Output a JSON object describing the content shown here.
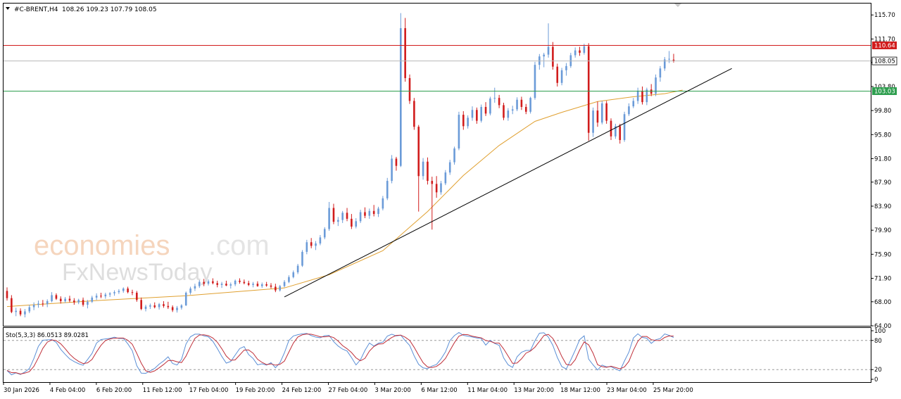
{
  "header": {
    "symbol": "#C-BRENT,H4",
    "ohlc": "108.26 109.23 107.79 108.05"
  },
  "watermark": {
    "brand_a": "economies",
    "brand_b": ".com",
    "brand_c": "FxNewsToday"
  },
  "colors": {
    "bull": "#6b9bd8",
    "bear": "#d11c1c",
    "ma": "#e0a030",
    "resistance": "#d11c1c",
    "support": "#2e9e4f",
    "price_line": "#b8b8b8",
    "trendline": "#000000",
    "stoch_main": "#5b8fd6",
    "stoch_signal": "#c0303a"
  },
  "chart_data": {
    "type": "candlestick",
    "instrument": "#C-BRENT",
    "timeframe": "H4",
    "ylim": [
      64.0,
      117.6
    ],
    "y_ticks": [
      "115.70",
      "111.70",
      "107.80",
      "103.80",
      "99.80",
      "95.80",
      "91.80",
      "87.90",
      "83.90",
      "79.90",
      "75.90",
      "71.90",
      "68.00",
      "64.00"
    ],
    "x_ticks": [
      "30 Jan 2026",
      "4 Feb 04:00",
      "6 Feb 20:00",
      "11 Feb 12:00",
      "17 Feb 04:00",
      "19 Feb 20:00",
      "24 Feb 12:00",
      "27 Feb 04:00",
      "3 Mar 20:00",
      "6 Mar 12:00",
      "11 Mar 04:00",
      "13 Mar 20:00",
      "18 Mar 12:00",
      "23 Mar 04:00",
      "25 Mar 20:00"
    ],
    "candles": [
      [
        69.8,
        70.4,
        68.2,
        68.6
      ],
      [
        68.6,
        69.1,
        66.1,
        66.3
      ],
      [
        66.3,
        67.0,
        65.6,
        66.5
      ],
      [
        66.5,
        66.9,
        65.6,
        65.9
      ],
      [
        65.9,
        66.8,
        65.4,
        66.4
      ],
      [
        66.4,
        67.5,
        66.1,
        67.1
      ],
      [
        67.1,
        67.9,
        66.6,
        67.5
      ],
      [
        67.5,
        68.2,
        67.0,
        67.7
      ],
      [
        67.7,
        68.3,
        67.2,
        67.6
      ],
      [
        67.6,
        68.4,
        67.1,
        68.1
      ],
      [
        68.1,
        69.6,
        67.9,
        69.1
      ],
      [
        69.1,
        69.4,
        68.3,
        68.5
      ],
      [
        68.5,
        68.9,
        67.7,
        68.1
      ],
      [
        68.1,
        68.8,
        67.8,
        68.5
      ],
      [
        68.5,
        69.0,
        67.9,
        68.2
      ],
      [
        68.2,
        68.6,
        67.5,
        67.9
      ],
      [
        67.9,
        68.5,
        67.6,
        68.3
      ],
      [
        68.3,
        68.7,
        67.2,
        67.5
      ],
      [
        67.5,
        68.3,
        66.9,
        68.0
      ],
      [
        68.0,
        69.0,
        67.8,
        68.7
      ],
      [
        68.7,
        69.4,
        68.3,
        69.0
      ],
      [
        69.0,
        69.5,
        68.6,
        68.9
      ],
      [
        68.9,
        69.5,
        68.5,
        69.2
      ],
      [
        69.2,
        69.6,
        68.8,
        69.4
      ],
      [
        69.4,
        69.9,
        69.0,
        69.6
      ],
      [
        69.6,
        70.1,
        69.3,
        69.8
      ],
      [
        69.8,
        70.4,
        69.5,
        70.2
      ],
      [
        70.2,
        70.5,
        69.4,
        69.6
      ],
      [
        69.6,
        70.0,
        69.1,
        69.5
      ],
      [
        69.5,
        69.8,
        68.0,
        68.3
      ],
      [
        68.3,
        68.7,
        66.6,
        66.8
      ],
      [
        66.8,
        67.5,
        66.4,
        67.2
      ],
      [
        67.2,
        67.7,
        66.8,
        67.4
      ],
      [
        67.4,
        67.9,
        66.9,
        67.1
      ],
      [
        67.1,
        67.8,
        66.7,
        67.6
      ],
      [
        67.6,
        68.1,
        67.0,
        67.3
      ],
      [
        67.3,
        68.0,
        66.8,
        67.1
      ],
      [
        67.1,
        67.4,
        66.3,
        66.6
      ],
      [
        66.6,
        67.3,
        66.2,
        67.0
      ],
      [
        67.0,
        67.6,
        66.7,
        67.4
      ],
      [
        67.4,
        69.7,
        67.3,
        69.5
      ],
      [
        69.5,
        70.5,
        69.2,
        70.2
      ],
      [
        70.2,
        71.0,
        69.8,
        70.6
      ],
      [
        70.6,
        71.6,
        70.3,
        71.3
      ],
      [
        71.3,
        71.8,
        70.6,
        71.0
      ],
      [
        71.0,
        71.7,
        70.7,
        71.4
      ],
      [
        71.4,
        71.9,
        70.9,
        71.1
      ],
      [
        71.1,
        71.5,
        70.4,
        70.8
      ],
      [
        70.8,
        71.3,
        70.3,
        71.0
      ],
      [
        71.0,
        71.5,
        70.6,
        70.7
      ],
      [
        70.7,
        71.2,
        70.2,
        70.9
      ],
      [
        70.9,
        71.7,
        70.6,
        71.5
      ],
      [
        71.5,
        71.9,
        71.0,
        71.3
      ],
      [
        71.3,
        71.7,
        70.9,
        71.1
      ],
      [
        71.1,
        71.5,
        70.6,
        70.8
      ],
      [
        70.8,
        71.3,
        70.4,
        71.0
      ],
      [
        71.0,
        71.4,
        70.5,
        70.6
      ],
      [
        70.6,
        71.2,
        70.3,
        70.9
      ],
      [
        70.9,
        71.3,
        70.5,
        70.7
      ],
      [
        70.7,
        71.1,
        70.2,
        70.5
      ],
      [
        70.5,
        71.0,
        69.6,
        69.9
      ],
      [
        69.9,
        70.8,
        69.7,
        70.6
      ],
      [
        70.6,
        71.6,
        70.4,
        71.3
      ],
      [
        71.3,
        72.4,
        71.1,
        72.1
      ],
      [
        72.1,
        73.2,
        71.9,
        72.9
      ],
      [
        72.9,
        74.3,
        72.6,
        74.0
      ],
      [
        74.0,
        76.6,
        73.8,
        76.3
      ],
      [
        76.3,
        78.3,
        75.9,
        77.9
      ],
      [
        77.9,
        78.6,
        76.9,
        77.3
      ],
      [
        77.3,
        78.1,
        76.6,
        77.7
      ],
      [
        77.7,
        79.1,
        77.4,
        78.7
      ],
      [
        78.7,
        80.4,
        78.4,
        80.1
      ],
      [
        80.1,
        84.6,
        79.8,
        83.6
      ],
      [
        83.6,
        84.3,
        80.9,
        81.3
      ],
      [
        81.3,
        82.1,
        80.6,
        81.6
      ],
      [
        81.6,
        83.1,
        81.1,
        82.8
      ],
      [
        82.8,
        83.6,
        81.4,
        81.8
      ],
      [
        81.8,
        82.6,
        80.1,
        80.5
      ],
      [
        80.5,
        81.9,
        80.2,
        81.4
      ],
      [
        81.4,
        83.3,
        81.1,
        82.9
      ],
      [
        82.9,
        83.7,
        81.9,
        82.3
      ],
      [
        82.3,
        83.5,
        81.8,
        83.1
      ],
      [
        83.1,
        84.1,
        82.2,
        82.6
      ],
      [
        82.6,
        83.8,
        82.1,
        83.5
      ],
      [
        83.5,
        85.6,
        83.2,
        85.2
      ],
      [
        85.2,
        88.6,
        84.9,
        88.1
      ],
      [
        88.1,
        92.4,
        87.7,
        91.8
      ],
      [
        91.8,
        92.1,
        89.8,
        90.6
      ],
      [
        90.6,
        116.0,
        90.4,
        113.5
      ],
      [
        113.5,
        115.2,
        104.6,
        105.2
      ],
      [
        105.2,
        105.8,
        100.9,
        101.4
      ],
      [
        101.4,
        101.9,
        96.6,
        97.1
      ],
      [
        97.1,
        97.4,
        83.0,
        88.9
      ],
      [
        88.9,
        91.9,
        88.3,
        91.3
      ],
      [
        91.3,
        92.0,
        87.5,
        88.1
      ],
      [
        88.1,
        88.8,
        80.0,
        87.6
      ],
      [
        87.6,
        88.9,
        85.3,
        86.2
      ],
      [
        86.2,
        88.1,
        85.8,
        87.7
      ],
      [
        87.7,
        89.9,
        87.4,
        89.5
      ],
      [
        89.5,
        91.6,
        89.1,
        91.2
      ],
      [
        91.2,
        93.8,
        90.8,
        93.5
      ],
      [
        93.5,
        99.6,
        93.2,
        99.1
      ],
      [
        99.1,
        99.7,
        96.6,
        97.2
      ],
      [
        97.2,
        99.0,
        96.8,
        98.6
      ],
      [
        98.6,
        100.5,
        98.1,
        99.9
      ],
      [
        99.9,
        100.3,
        97.6,
        98.1
      ],
      [
        98.1,
        100.8,
        97.8,
        100.4
      ],
      [
        100.4,
        101.2,
        98.9,
        99.3
      ],
      [
        99.3,
        102.1,
        99.0,
        101.8
      ],
      [
        101.8,
        103.6,
        101.1,
        101.9
      ],
      [
        101.9,
        102.4,
        100.2,
        100.7
      ],
      [
        100.7,
        101.1,
        98.2,
        98.6
      ],
      [
        98.6,
        100.2,
        98.1,
        99.8
      ],
      [
        99.8,
        100.6,
        99.2,
        100.0
      ],
      [
        100.0,
        102.0,
        99.7,
        101.6
      ],
      [
        101.6,
        102.1,
        99.9,
        100.4
      ],
      [
        100.4,
        100.9,
        99.2,
        99.6
      ],
      [
        99.6,
        102.1,
        99.3,
        101.9
      ],
      [
        101.9,
        107.9,
        101.6,
        107.4
      ],
      [
        107.4,
        109.2,
        106.6,
        108.8
      ],
      [
        108.8,
        109.4,
        107.0,
        109.1
      ],
      [
        109.1,
        114.3,
        108.6,
        110.4
      ],
      [
        110.4,
        111.2,
        106.6,
        107.1
      ],
      [
        107.1,
        107.6,
        103.8,
        104.4
      ],
      [
        104.4,
        106.9,
        104.0,
        106.5
      ],
      [
        106.5,
        107.7,
        105.6,
        107.2
      ],
      [
        107.2,
        109.4,
        106.9,
        109.0
      ],
      [
        109.0,
        110.3,
        108.6,
        109.8
      ],
      [
        109.8,
        110.4,
        108.9,
        109.4
      ],
      [
        109.4,
        110.9,
        109.1,
        110.5
      ],
      [
        110.5,
        111.0,
        94.8,
        96.1
      ],
      [
        96.1,
        100.3,
        95.4,
        99.8
      ],
      [
        99.8,
        101.3,
        97.1,
        97.8
      ],
      [
        97.8,
        101.4,
        97.5,
        101.0
      ],
      [
        101.0,
        101.4,
        97.6,
        98.1
      ],
      [
        98.1,
        98.5,
        94.9,
        95.5
      ],
      [
        95.5,
        97.6,
        95.1,
        97.2
      ],
      [
        97.2,
        97.6,
        94.3,
        94.9
      ],
      [
        94.9,
        99.6,
        94.6,
        99.2
      ],
      [
        99.2,
        101.0,
        98.9,
        100.5
      ],
      [
        100.5,
        101.9,
        100.2,
        101.4
      ],
      [
        101.4,
        103.6,
        100.9,
        103.1
      ],
      [
        103.1,
        103.8,
        100.8,
        101.2
      ],
      [
        101.2,
        103.6,
        100.7,
        103.3
      ],
      [
        103.3,
        104.2,
        102.2,
        102.6
      ],
      [
        102.6,
        105.8,
        102.2,
        105.3
      ],
      [
        105.3,
        107.2,
        104.6,
        106.8
      ],
      [
        106.8,
        108.7,
        106.4,
        108.3
      ],
      [
        108.3,
        109.7,
        107.7,
        108.4
      ],
      [
        108.26,
        109.23,
        107.79,
        108.05
      ]
    ],
    "moving_average": [
      [
        0,
        67.2
      ],
      [
        20,
        68.2
      ],
      [
        40,
        69.0
      ],
      [
        62,
        70.3
      ],
      [
        72,
        72.5
      ],
      [
        84,
        76.5
      ],
      [
        94,
        83.0
      ],
      [
        102,
        89.0
      ],
      [
        110,
        94.0
      ],
      [
        118,
        98.0
      ],
      [
        124,
        99.5
      ],
      [
        132,
        101.3
      ],
      [
        140,
        102.1
      ],
      [
        147,
        102.6
      ],
      [
        151,
        103.2
      ]
    ],
    "trendline": [
      [
        62,
        68.8
      ],
      [
        162,
        106.8
      ]
    ],
    "horizontal_levels": {
      "resistance": {
        "value": 110.64,
        "label": "110.64"
      },
      "last_price": {
        "value": 108.05,
        "label": "108.05"
      },
      "support": {
        "value": 103.03,
        "label": "103.03"
      }
    },
    "stochastic": {
      "label": "Sto(5,3,3) 86.0513 89.0281",
      "params": "5,3,3",
      "main": 86.0513,
      "signal": 89.0281,
      "ylim": [
        0,
        100
      ],
      "levels": [
        80,
        20
      ],
      "y_ticks": [
        "100",
        "80",
        "20",
        "0"
      ]
    }
  }
}
